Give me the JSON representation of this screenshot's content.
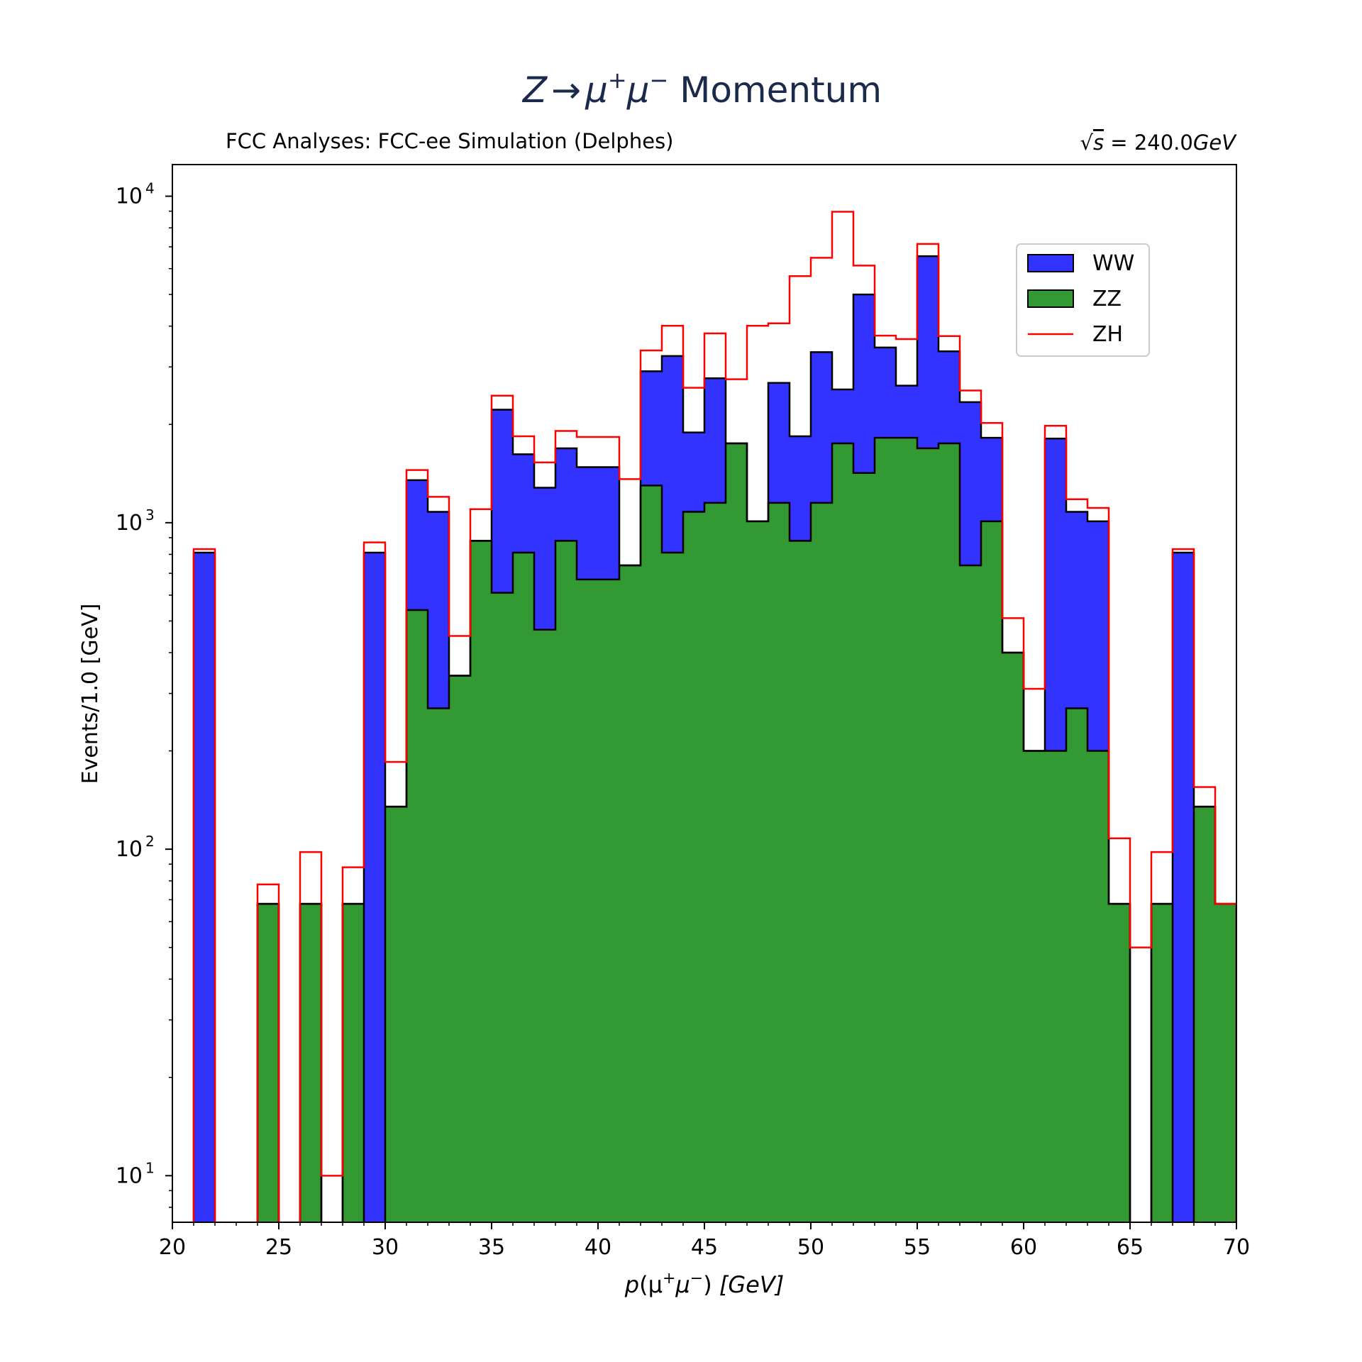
{
  "chart_data": {
    "type": "histogram",
    "title": "Z → μ⁺μ⁻ Momentum",
    "title_parts": {
      "z": "Z",
      "arrow": "→",
      "mu1": "μ",
      "sup1": "+",
      "mu2": "μ",
      "sup2": "−",
      "rest": " Momentum"
    },
    "subtitle_left": "FCC Analyses: FCC-ee Simulation (Delphes)",
    "subtitle_right": "√s = 240.0GeV",
    "subtitle_right_parts": {
      "sqrt": "√",
      "s": "s",
      "eq": " = 240.0",
      "unit": "GeV"
    },
    "xlabel": "p(μ⁺μ⁻) [GeV]",
    "xlabel_parts": {
      "p": "p",
      "open": "(μ",
      "sup1": "+",
      "mu2": "μ",
      "sup2": "−",
      "close": ")",
      "unit": " [GeV]"
    },
    "ylabel": "Events/1.0 [GeV]",
    "xlim": [
      20,
      70
    ],
    "ylim": [
      7.2,
      12500
    ],
    "yscale": "log",
    "stacked": true,
    "bin_width": 1,
    "x_ticks": [
      20,
      25,
      30,
      35,
      40,
      45,
      50,
      55,
      60,
      65,
      70
    ],
    "y_ticks": [
      {
        "value": 10,
        "base": "10",
        "exp": "1"
      },
      {
        "value": 100,
        "base": "10",
        "exp": "2"
      },
      {
        "value": 1000,
        "base": "10",
        "exp": "3"
      },
      {
        "value": 10000,
        "base": "10",
        "exp": "4"
      }
    ],
    "legend": {
      "position": "upper-right"
    },
    "bin_edges": [
      20,
      21,
      22,
      23,
      24,
      25,
      26,
      27,
      28,
      29,
      30,
      31,
      32,
      33,
      34,
      35,
      36,
      37,
      38,
      39,
      40,
      41,
      42,
      43,
      44,
      45,
      46,
      47,
      48,
      49,
      50,
      51,
      52,
      53,
      54,
      55,
      56,
      57,
      58,
      59,
      60,
      61,
      62,
      63,
      64,
      65,
      66,
      67,
      68,
      69,
      70
    ],
    "series": [
      {
        "name": "ZZ",
        "color": "#339933",
        "values": [
          0,
          0,
          0,
          0,
          68,
          0,
          68,
          0,
          68,
          0,
          135,
          540,
          270,
          340,
          880,
          610,
          810,
          470,
          880,
          670,
          670,
          740,
          1300,
          810,
          1080,
          1150,
          1750,
          1010,
          1150,
          880,
          1150,
          1750,
          1420,
          1820,
          1820,
          1690,
          1750,
          740,
          1010,
          400,
          200,
          200,
          270,
          200,
          68,
          0,
          68,
          0,
          135,
          68
        ]
      },
      {
        "name": "WW",
        "color": "#3333ff",
        "values": [
          0,
          810,
          0,
          0,
          0,
          0,
          0,
          0,
          0,
          810,
          0,
          810,
          810,
          0,
          0,
          1610,
          810,
          810,
          810,
          810,
          810,
          0,
          1610,
          2430,
          810,
          1620,
          0,
          0,
          1530,
          960,
          2180,
          810,
          3580,
          1620,
          810,
          4860,
          1600,
          1600,
          810,
          0,
          0,
          1610,
          810,
          810,
          0,
          0,
          0,
          810,
          0,
          0
        ]
      },
      {
        "name": "ZH",
        "color": "#ff0000",
        "values": [
          0,
          20,
          0,
          0,
          10,
          0,
          30,
          10,
          20,
          60,
          50,
          100,
          120,
          110,
          220,
          230,
          220,
          250,
          220,
          350,
          350,
          620,
          460,
          770,
          700,
          1030,
          1000,
          3000,
          1400,
          3850,
          3150,
          6400,
          1130,
          300,
          1020,
          590,
          380,
          200,
          200,
          110,
          110,
          170,
          100,
          100,
          40,
          50,
          30,
          20,
          20,
          0
        ]
      }
    ]
  }
}
